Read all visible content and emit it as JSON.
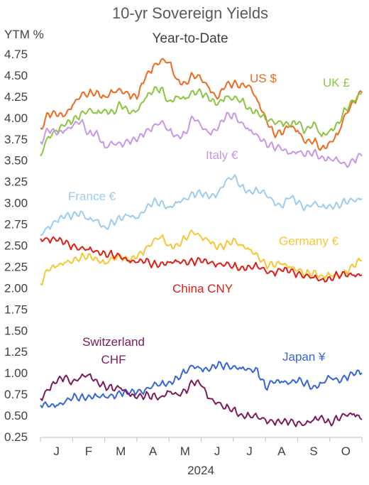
{
  "chart_data": {
    "type": "line",
    "title": "10-yr Sovereign Yields",
    "subtitle": "Year-to-Date",
    "ylabel": "YTM %",
    "xlabel": "2024",
    "ylim": [
      0.25,
      4.75
    ],
    "yticks": [
      "4.75",
      "4.50",
      "4.25",
      "4.00",
      "3.75",
      "3.50",
      "3.25",
      "3.00",
      "2.75",
      "2.50",
      "2.25",
      "2.00",
      "1.75",
      "1.50",
      "1.25",
      "1.00",
      "0.75",
      "0.50",
      "0.25"
    ],
    "xlim": [
      0,
      10
    ],
    "months": [
      "J",
      "F",
      "M",
      "A",
      "M",
      "J",
      "J",
      "A",
      "S",
      "O"
    ],
    "grid": false,
    "legend": "inline labels",
    "series": [
      {
        "name": "US $",
        "color": "#EE6A1E",
        "x": [
          0,
          0.25,
          0.5,
          0.75,
          1,
          1.25,
          1.5,
          1.75,
          2,
          2.25,
          2.5,
          2.75,
          3,
          3.25,
          3.5,
          3.75,
          4,
          4.25,
          4.5,
          4.75,
          5,
          5.25,
          5.5,
          5.75,
          6,
          6.25,
          6.5,
          6.75,
          7,
          7.25,
          7.5,
          7.75,
          8,
          8.25,
          8.5,
          8.75,
          9,
          9.25,
          9.5,
          9.75,
          10
        ],
        "values": [
          3.88,
          4.05,
          4.02,
          4.02,
          4.15,
          4.25,
          4.28,
          4.32,
          4.25,
          4.3,
          4.33,
          4.28,
          4.22,
          4.45,
          4.6,
          4.68,
          4.65,
          4.45,
          4.42,
          4.5,
          4.45,
          4.35,
          4.22,
          4.36,
          4.4,
          4.4,
          4.38,
          4.2,
          4.02,
          3.82,
          3.8,
          3.9,
          3.85,
          3.7,
          3.72,
          3.65,
          3.72,
          3.8,
          4.05,
          4.2,
          4.3
        ]
      },
      {
        "name": "UK £",
        "color": "#8BC53F",
        "x": [
          0,
          0.25,
          0.5,
          0.75,
          1,
          1.25,
          1.5,
          1.75,
          2,
          2.25,
          2.5,
          2.75,
          3,
          3.25,
          3.5,
          3.75,
          4,
          4.25,
          4.5,
          4.75,
          5,
          5.25,
          5.5,
          5.75,
          6,
          6.25,
          6.5,
          6.75,
          7,
          7.25,
          7.5,
          7.75,
          8,
          8.25,
          8.5,
          8.75,
          9,
          9.25,
          9.5,
          9.75,
          10
        ],
        "values": [
          3.55,
          3.78,
          3.85,
          3.9,
          3.95,
          4.05,
          4.1,
          4.05,
          4.1,
          4.08,
          4.15,
          4.05,
          4.08,
          4.22,
          4.3,
          4.35,
          4.2,
          4.25,
          4.22,
          4.32,
          4.3,
          4.2,
          4.15,
          4.25,
          4.22,
          4.2,
          4.12,
          4.08,
          3.98,
          3.95,
          3.95,
          3.9,
          3.93,
          3.85,
          3.95,
          3.78,
          3.85,
          3.95,
          4.1,
          4.18,
          4.3
        ]
      },
      {
        "name": "Italy €",
        "color": "#C896E8",
        "x": [
          0,
          0.25,
          0.5,
          0.75,
          1,
          1.25,
          1.5,
          1.75,
          2,
          2.25,
          2.5,
          2.75,
          3,
          3.25,
          3.5,
          3.75,
          4,
          4.25,
          4.5,
          4.75,
          5,
          5.25,
          5.5,
          5.75,
          6,
          6.25,
          6.5,
          6.75,
          7,
          7.25,
          7.5,
          7.75,
          8,
          8.25,
          8.5,
          8.75,
          9,
          9.25,
          9.5,
          9.75,
          10
        ],
        "values": [
          3.72,
          3.85,
          3.8,
          3.85,
          3.9,
          3.95,
          3.82,
          3.85,
          3.65,
          3.7,
          3.7,
          3.72,
          3.72,
          3.82,
          3.9,
          3.95,
          3.85,
          3.8,
          3.82,
          4.0,
          3.9,
          3.82,
          3.85,
          4.0,
          4.05,
          3.95,
          3.85,
          3.8,
          3.72,
          3.65,
          3.62,
          3.58,
          3.6,
          3.55,
          3.6,
          3.55,
          3.52,
          3.5,
          3.45,
          3.5,
          3.55
        ]
      },
      {
        "name": "France €",
        "color": "#9DCCF0",
        "x": [
          0,
          0.25,
          0.5,
          0.75,
          1,
          1.25,
          1.5,
          1.75,
          2,
          2.25,
          2.5,
          2.75,
          3,
          3.25,
          3.5,
          3.75,
          4,
          4.25,
          4.5,
          4.75,
          5,
          5.25,
          5.5,
          5.75,
          6,
          6.25,
          6.5,
          6.75,
          7,
          7.25,
          7.5,
          7.75,
          8,
          8.25,
          8.5,
          8.75,
          9,
          9.25,
          9.5,
          9.75,
          10
        ],
        "values": [
          2.62,
          2.72,
          2.78,
          2.82,
          2.85,
          2.9,
          2.8,
          2.8,
          2.72,
          2.78,
          2.8,
          2.85,
          2.82,
          2.9,
          3.0,
          3.02,
          2.95,
          3.0,
          3.05,
          3.12,
          3.1,
          3.05,
          3.1,
          3.25,
          3.3,
          3.2,
          3.15,
          3.15,
          3.1,
          3.02,
          2.95,
          3.05,
          3.0,
          2.95,
          3.0,
          2.95,
          2.98,
          2.98,
          3.0,
          3.02,
          3.05
        ]
      },
      {
        "name": "Germany €",
        "color": "#F8C631",
        "x": [
          0,
          0.25,
          0.5,
          0.75,
          1,
          1.25,
          1.5,
          1.75,
          2,
          2.25,
          2.5,
          2.75,
          3,
          3.25,
          3.5,
          3.75,
          4,
          4.25,
          4.5,
          4.75,
          5,
          5.25,
          5.5,
          5.75,
          6,
          6.25,
          6.5,
          6.75,
          7,
          7.25,
          7.5,
          7.75,
          8,
          8.25,
          8.5,
          8.75,
          9,
          9.25,
          9.5,
          9.75,
          10
        ],
        "values": [
          2.05,
          2.2,
          2.25,
          2.3,
          2.3,
          2.35,
          2.4,
          2.35,
          2.28,
          2.35,
          2.38,
          2.3,
          2.35,
          2.45,
          2.55,
          2.6,
          2.5,
          2.52,
          2.58,
          2.65,
          2.6,
          2.55,
          2.45,
          2.5,
          2.58,
          2.5,
          2.45,
          2.4,
          2.28,
          2.25,
          2.28,
          2.25,
          2.2,
          2.15,
          2.2,
          2.15,
          2.15,
          2.15,
          2.2,
          2.25,
          2.32
        ]
      },
      {
        "name": "China CNY",
        "color": "#DC1E14",
        "x": [
          0,
          0.25,
          0.5,
          0.75,
          1,
          1.25,
          1.5,
          1.75,
          2,
          2.25,
          2.5,
          2.75,
          3,
          3.25,
          3.5,
          3.75,
          4,
          4.25,
          4.5,
          4.75,
          5,
          5.25,
          5.5,
          5.75,
          6,
          6.25,
          6.5,
          6.75,
          7,
          7.25,
          7.5,
          7.75,
          8,
          8.25,
          8.5,
          8.75,
          9,
          9.25,
          9.5,
          9.75,
          10
        ],
        "values": [
          2.58,
          2.57,
          2.55,
          2.52,
          2.5,
          2.47,
          2.45,
          2.44,
          2.42,
          2.38,
          2.35,
          2.32,
          2.3,
          2.3,
          2.28,
          2.3,
          2.3,
          2.31,
          2.32,
          2.31,
          2.3,
          2.29,
          2.28,
          2.27,
          2.25,
          2.25,
          2.26,
          2.25,
          2.2,
          2.18,
          2.2,
          2.18,
          2.17,
          2.15,
          2.12,
          2.1,
          2.13,
          2.15,
          2.14,
          2.15,
          2.15
        ]
      },
      {
        "name": "Japan ¥",
        "color": "#3665D6",
        "x": [
          0,
          0.25,
          0.5,
          0.75,
          1,
          1.25,
          1.5,
          1.75,
          2,
          2.25,
          2.5,
          2.75,
          3,
          3.25,
          3.5,
          3.75,
          4,
          4.25,
          4.5,
          4.75,
          5,
          5.25,
          5.5,
          5.75,
          6,
          6.25,
          6.5,
          6.75,
          7,
          7.25,
          7.5,
          7.75,
          8,
          8.25,
          8.5,
          8.75,
          9,
          9.25,
          9.5,
          9.75,
          10
        ],
        "values": [
          0.62,
          0.6,
          0.62,
          0.65,
          0.7,
          0.72,
          0.74,
          0.73,
          0.72,
          0.74,
          0.76,
          0.75,
          0.77,
          0.8,
          0.85,
          0.87,
          0.9,
          0.95,
          1.0,
          1.08,
          1.05,
          1.02,
          1.08,
          1.1,
          1.08,
          1.05,
          1.05,
          1.05,
          0.82,
          0.88,
          0.9,
          0.88,
          0.9,
          0.88,
          0.85,
          0.88,
          0.95,
          0.92,
          0.95,
          0.97,
          1.0
        ]
      },
      {
        "name": "Switzerland CHF",
        "color": "#7B1A5A",
        "x": [
          0,
          0.25,
          0.5,
          0.75,
          1,
          1.25,
          1.5,
          1.75,
          2,
          2.25,
          2.5,
          2.75,
          3,
          3.25,
          3.5,
          3.75,
          4,
          4.25,
          4.5,
          4.75,
          5,
          5.25,
          5.5,
          5.75,
          6,
          6.25,
          6.5,
          6.75,
          7,
          7.25,
          7.5,
          7.75,
          8,
          8.25,
          8.5,
          8.75,
          9,
          9.25,
          9.5,
          9.75,
          10
        ],
        "values": [
          0.7,
          0.8,
          0.88,
          0.95,
          0.9,
          0.95,
          0.98,
          0.92,
          0.85,
          0.8,
          0.82,
          0.75,
          0.7,
          0.72,
          0.75,
          0.72,
          0.78,
          0.75,
          0.8,
          0.88,
          0.85,
          0.7,
          0.65,
          0.58,
          0.58,
          0.52,
          0.5,
          0.48,
          0.45,
          0.42,
          0.4,
          0.42,
          0.42,
          0.4,
          0.45,
          0.5,
          0.42,
          0.45,
          0.5,
          0.52,
          0.45
        ]
      }
    ],
    "label_texts": {
      "us": "US $",
      "uk": "UK £",
      "italy": "Italy €",
      "france": "France €",
      "germany": "Germany €",
      "china": "China CNY",
      "japan": "Japan ¥",
      "swiss_line1": "Switzerland",
      "swiss_line2": "CHF"
    }
  }
}
